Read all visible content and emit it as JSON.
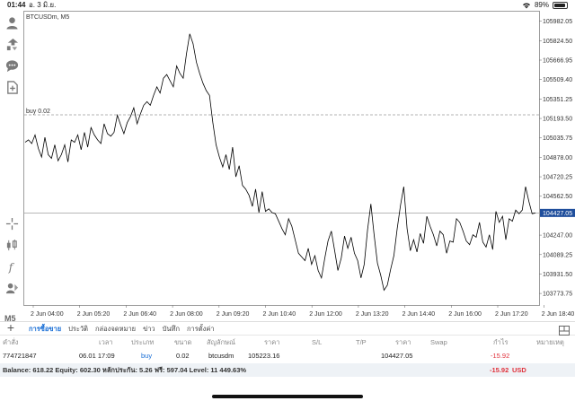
{
  "status": {
    "time": "01:44",
    "date": "อ. 3 มิ.ย.",
    "battery": "89%",
    "battery_level": 0.89
  },
  "chart": {
    "symbol_timeframe": "BTCUSDm, M5",
    "timeframe_label": "M5",
    "order_line_label": "buy 0.02",
    "order_price": 105223.16,
    "current_price_label": "104427.05",
    "current_price": 104427.05,
    "price_ticks": [
      "105982.05",
      "105824.50",
      "105666.95",
      "105509.40",
      "105351.25",
      "105193.50",
      "105035.75",
      "104878.00",
      "104720.25",
      "104562.50",
      "104427.05",
      "104247.00",
      "104089.25",
      "103931.50",
      "103773.75"
    ],
    "time_ticks": [
      "2 Jun 04:00",
      "2 Jun 05:20",
      "2 Jun 06:40",
      "2 Jun 08:00",
      "2 Jun 09:20",
      "2 Jun 10:40",
      "2 Jun 12:00",
      "2 Jun 13:20",
      "2 Jun 14:40",
      "2 Jun 16:00",
      "2 Jun 17:20",
      "2 Jun 18:40"
    ]
  },
  "chart_data": {
    "type": "line",
    "title": "BTCUSDm, M5",
    "ylim": [
      103680,
      106060
    ],
    "values": [
      105000,
      105020,
      104990,
      105060,
      104950,
      104880,
      105040,
      104900,
      104870,
      104980,
      104850,
      104900,
      104980,
      104840,
      105020,
      105000,
      105060,
      104940,
      105080,
      104960,
      105120,
      105060,
      105020,
      104990,
      105150,
      105070,
      105050,
      105080,
      105220,
      105140,
      105070,
      105160,
      105210,
      105280,
      105150,
      105230,
      105300,
      105330,
      105300,
      105380,
      105450,
      105400,
      105520,
      105550,
      105500,
      105450,
      105620,
      105560,
      105520,
      105720,
      105880,
      105800,
      105650,
      105560,
      105480,
      105420,
      105380,
      105160,
      104980,
      104880,
      104800,
      104900,
      104780,
      104960,
      104720,
      104810,
      104650,
      104620,
      104570,
      104480,
      104620,
      104430,
      104600,
      104440,
      104460,
      104430,
      104420,
      104360,
      104300,
      104250,
      104380,
      104320,
      104210,
      104100,
      104070,
      104040,
      104140,
      104010,
      104080,
      103960,
      103900,
      104060,
      104200,
      104280,
      104120,
      103960,
      104060,
      104240,
      104140,
      104230,
      104100,
      104040,
      103900,
      104010,
      104290,
      104500,
      104250,
      104020,
      103920,
      103800,
      103840,
      103970,
      104080,
      104300,
      104490,
      104640,
      104300,
      104120,
      104210,
      104110,
      104260,
      104180,
      104400,
      104320,
      104250,
      104160,
      104280,
      104250,
      104100,
      104200,
      104190,
      104380,
      104350,
      104280,
      104200,
      104170,
      104250,
      104230,
      104350,
      104190,
      104150,
      104250,
      104130,
      104440,
      104350,
      104400,
      104210,
      104380,
      104360,
      104450,
      104420,
      104450,
      104640,
      104520,
      104420,
      104427
    ]
  },
  "tabs": [
    "การซื้อขาย",
    "ประวัติ",
    "กล่องจดหมาย",
    "ข่าว",
    "บันทึก",
    "การตั้งค่า"
  ],
  "table": {
    "headers": {
      "order": "คำสั่ง",
      "time": "เวลา",
      "type": "ประเภท",
      "volume": "ขนาด",
      "symbol": "สัญลักษณ์",
      "price": "ราคา",
      "sl": "S/L",
      "tp": "T/P",
      "price2": "ราคา",
      "swap": "Swap",
      "profit": "กำไร",
      "comment": "หมายเหตุ"
    },
    "rows": [
      {
        "order": "774721847",
        "time": "06.01 17:09",
        "type": "buy",
        "volume": "0.02",
        "symbol": "btcusdm",
        "open_price": "105223.16",
        "current_price": "104427.05",
        "profit": "-15.92"
      }
    ]
  },
  "balance": {
    "text": "Balance: 618.22 Equity: 602.30 หลักประกัน: 5.26 ฟรี: 597.04 Level: 11 449.63%",
    "profit": "-15.92",
    "currency": "USD"
  },
  "colors": {
    "accent": "#1a6fd6",
    "negative": "#e0323c",
    "price_tag": "#1f4e9c",
    "icons": "#7a7a7a"
  }
}
